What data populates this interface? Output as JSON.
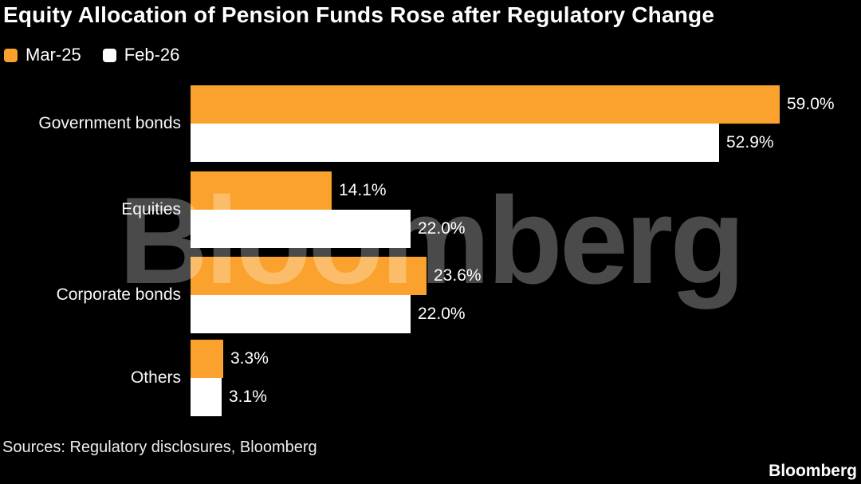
{
  "title": "Equity Allocation of Pension Funds Rose after Regulatory Change",
  "legend": [
    {
      "label": "Mar-25",
      "color": "#FAA22D"
    },
    {
      "label": "Feb-26",
      "color": "#FFFFFF"
    }
  ],
  "watermark_text": "Bloomberg",
  "source_note": "Sources: Regulatory disclosures, Bloomberg",
  "brand_logo": "Bloomberg",
  "colors": {
    "background": "#000000",
    "bar_orange": "#FAA22D",
    "bar_white": "#FFFFFF",
    "text": "#FFFFFF",
    "watermark_over_black": "#4A4A4A"
  },
  "chart_data": {
    "type": "bar",
    "orientation": "horizontal",
    "title": "Equity Allocation of Pension Funds Rose after Regulatory Change",
    "categories": [
      "Government bonds",
      "Equities",
      "Corporate bonds",
      "Others"
    ],
    "series": [
      {
        "name": "Mar-25",
        "color": "#FAA22D",
        "values": [
          59.0,
          14.1,
          23.6,
          3.3
        ],
        "labels": [
          "59.0%",
          "14.1%",
          "23.6%",
          "3.3%"
        ]
      },
      {
        "name": "Feb-26",
        "color": "#FFFFFF",
        "values": [
          52.9,
          22.0,
          22.0,
          3.1
        ],
        "labels": [
          "52.9%",
          "22.0%",
          "22.0%",
          "3.1%"
        ]
      }
    ],
    "xlabel": "",
    "ylabel": "",
    "xlim": [
      0,
      64
    ],
    "grid": false,
    "axis_visible": false,
    "value_labels_shown": true,
    "legend_position": "top-left"
  }
}
